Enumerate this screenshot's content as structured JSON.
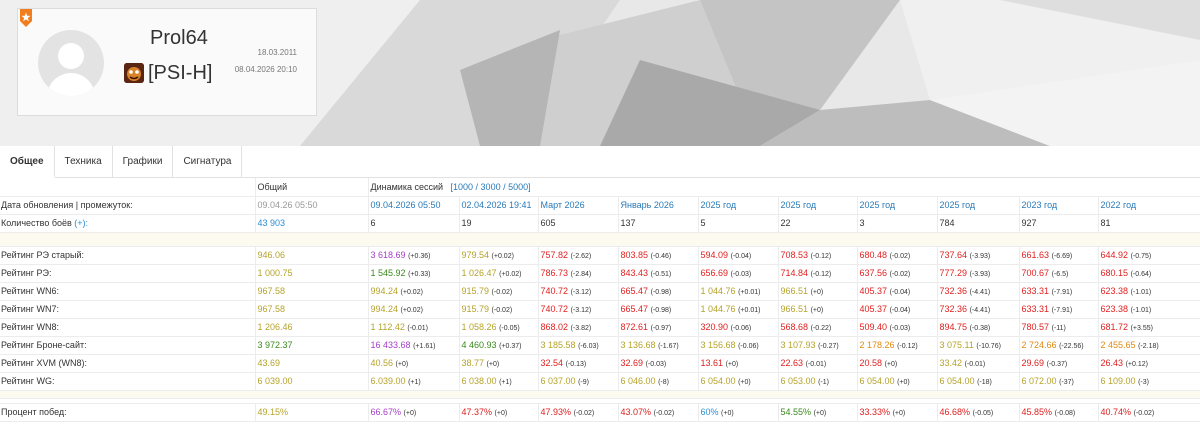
{
  "profile": {
    "nickname": "Prol64",
    "clan_tag": "[PSI-H]",
    "registered": "18.03.2011",
    "last_battle": "08.04.2026 20:10",
    "badge_icon": "star-badge-icon",
    "clan_icon": "clan-emblem-icon",
    "avatar_icon": "user-avatar-icon"
  },
  "tabs": [
    {
      "label": "Общее",
      "active": true
    },
    {
      "label": "Техника",
      "active": false
    },
    {
      "label": "Графики",
      "active": false
    },
    {
      "label": "Сигнатура",
      "active": false
    }
  ],
  "table": {
    "general_header": "Общий",
    "dynamics_header": "Динамика сессий",
    "dynamics_intervals": "[1000 / 3000 / 5000]",
    "update_label": "Дата обновления | промежуток:",
    "general_update": "09.04.26 05:50",
    "columns": [
      "09.04.2026 05:50",
      "02.04.2026 19:41",
      "Март 2026",
      "Январь 2026",
      "2025 год",
      "2025 год",
      "2025 год",
      "2025 год",
      "2023 год",
      "2022 год"
    ],
    "battles_label": "Количество боёв",
    "battles_plus": "(+):",
    "battles_general": "43 903",
    "battles": [
      "6",
      "19",
      "605",
      "137",
      "5",
      "22",
      "3",
      "784",
      "927",
      "81"
    ],
    "rows": [
      {
        "label": "Рейтинг РЭ старый:",
        "general": "946.06",
        "gc": "c-yellow",
        "cells": [
          [
            "3 618.69",
            "(+0.36)",
            "c-purple"
          ],
          [
            "979.54",
            "(+0.02)",
            "c-yellow"
          ],
          [
            "757.82",
            "(-2.62)",
            "c-red"
          ],
          [
            "803.85",
            "(-0.46)",
            "c-red"
          ],
          [
            "594.09",
            "(-0.04)",
            "c-red"
          ],
          [
            "708.53",
            "(-0.12)",
            "c-red"
          ],
          [
            "680.48",
            "(-0.02)",
            "c-red"
          ],
          [
            "737.64",
            "(-3.93)",
            "c-red"
          ],
          [
            "661.63",
            "(-6.69)",
            "c-red"
          ],
          [
            "644.92",
            "(-0.75)",
            "c-red"
          ]
        ]
      },
      {
        "label": "Рейтинг РЭ:",
        "general": "1 000.75",
        "gc": "c-yellow",
        "cells": [
          [
            "1 545.92",
            "(+0.33)",
            "c-green"
          ],
          [
            "1 026.47",
            "(+0.02)",
            "c-yellow"
          ],
          [
            "786.73",
            "(-2.84)",
            "c-red"
          ],
          [
            "843.43",
            "(-0.51)",
            "c-red"
          ],
          [
            "656.69",
            "(-0.03)",
            "c-red"
          ],
          [
            "714.84",
            "(-0.12)",
            "c-red"
          ],
          [
            "637.56",
            "(-0.02)",
            "c-red"
          ],
          [
            "777.29",
            "(-3.93)",
            "c-red"
          ],
          [
            "700.67",
            "(-6.5)",
            "c-red"
          ],
          [
            "680.15",
            "(-0.64)",
            "c-red"
          ]
        ]
      },
      {
        "label": "Рейтинг WN6:",
        "general": "967.58",
        "gc": "c-yellow",
        "cells": [
          [
            "994.24",
            "(+0.02)",
            "c-yellow"
          ],
          [
            "915.79",
            "(-0.02)",
            "c-yellow"
          ],
          [
            "740.72",
            "(-3.12)",
            "c-red"
          ],
          [
            "665.47",
            "(-0.98)",
            "c-red"
          ],
          [
            "1 044.76",
            "(+0.01)",
            "c-yellow"
          ],
          [
            "966.51",
            "(+0)",
            "c-yellow"
          ],
          [
            "405.37",
            "(-0.04)",
            "c-red"
          ],
          [
            "732.36",
            "(-4.41)",
            "c-red"
          ],
          [
            "633.31",
            "(-7.91)",
            "c-red"
          ],
          [
            "623.38",
            "(-1.01)",
            "c-red"
          ]
        ]
      },
      {
        "label": "Рейтинг WN7:",
        "general": "967.58",
        "gc": "c-yellow",
        "cells": [
          [
            "994.24",
            "(+0.02)",
            "c-yellow"
          ],
          [
            "915.79",
            "(-0.02)",
            "c-yellow"
          ],
          [
            "740.72",
            "(-3.12)",
            "c-red"
          ],
          [
            "665.47",
            "(-0.98)",
            "c-red"
          ],
          [
            "1 044.76",
            "(+0.01)",
            "c-yellow"
          ],
          [
            "966.51",
            "(+0)",
            "c-yellow"
          ],
          [
            "405.37",
            "(-0.04)",
            "c-red"
          ],
          [
            "732.36",
            "(-4.41)",
            "c-red"
          ],
          [
            "633.31",
            "(-7.91)",
            "c-red"
          ],
          [
            "623.38",
            "(-1.01)",
            "c-red"
          ]
        ]
      },
      {
        "label": "Рейтинг WN8:",
        "general": "1 206.46",
        "gc": "c-yellow",
        "cells": [
          [
            "1 112.42",
            "(-0.01)",
            "c-yellow"
          ],
          [
            "1 058.26",
            "(-0.05)",
            "c-yellow"
          ],
          [
            "868.02",
            "(-3.82)",
            "c-red"
          ],
          [
            "872.61",
            "(-0.97)",
            "c-red"
          ],
          [
            "320.90",
            "(-0.06)",
            "c-red"
          ],
          [
            "568.68",
            "(-0.22)",
            "c-red"
          ],
          [
            "509.40",
            "(-0.03)",
            "c-red"
          ],
          [
            "894.75",
            "(-0.38)",
            "c-red"
          ],
          [
            "780.57",
            "(-11)",
            "c-red"
          ],
          [
            "681.72",
            "(+3.55)",
            "c-red"
          ]
        ]
      },
      {
        "label": "Рейтинг Броне-сайт:",
        "general": "3 972.37",
        "gc": "c-green",
        "cells": [
          [
            "16 433.68",
            "(+1.61)",
            "c-purple"
          ],
          [
            "4 460.93",
            "(+0.37)",
            "c-green"
          ],
          [
            "3 185.58",
            "(-6.03)",
            "c-yellow"
          ],
          [
            "3 136.68",
            "(-1.67)",
            "c-yellow"
          ],
          [
            "3 156.68",
            "(-0.06)",
            "c-yellow"
          ],
          [
            "3 107.93",
            "(-0.27)",
            "c-yellow"
          ],
          [
            "2 178.26",
            "(-0.12)",
            "c-orange"
          ],
          [
            "3 075.11",
            "(-10.76)",
            "c-yellow"
          ],
          [
            "2 724.66",
            "(-22.56)",
            "c-orange"
          ],
          [
            "2 455.65",
            "(-2.18)",
            "c-orange"
          ]
        ]
      },
      {
        "label": "Рейтинг XVM (WN8):",
        "general": "43.69",
        "gc": "c-yellow",
        "cells": [
          [
            "40.56",
            "(+0)",
            "c-yellow"
          ],
          [
            "38.77",
            "(+0)",
            "c-yellow"
          ],
          [
            "32.54",
            "(-0.13)",
            "c-red"
          ],
          [
            "32.69",
            "(-0.03)",
            "c-red"
          ],
          [
            "13.61",
            "(+0)",
            "c-red"
          ],
          [
            "22.63",
            "(-0.01)",
            "c-red"
          ],
          [
            "20.58",
            "(+0)",
            "c-red"
          ],
          [
            "33.42",
            "(-0.01)",
            "c-yellow"
          ],
          [
            "29.69",
            "(-0.37)",
            "c-red"
          ],
          [
            "26.43",
            "(+0.12)",
            "c-red"
          ]
        ]
      },
      {
        "label": "Рейтинг WG:",
        "general": "6 039.00",
        "gc": "c-yellow",
        "cells": [
          [
            "6.039.00",
            "(+1)",
            "c-yellow"
          ],
          [
            "6 038.00",
            "(+1)",
            "c-yellow"
          ],
          [
            "6 037.00",
            "(-9)",
            "c-yellow"
          ],
          [
            "6 046.00",
            "(-8)",
            "c-yellow"
          ],
          [
            "6 054.00",
            "(+0)",
            "c-yellow"
          ],
          [
            "6 053.00",
            "(-1)",
            "c-yellow"
          ],
          [
            "6 054.00",
            "(+0)",
            "c-yellow"
          ],
          [
            "6 054.00",
            "(-18)",
            "c-yellow"
          ],
          [
            "6 072.00",
            "(-37)",
            "c-yellow"
          ],
          [
            "6 109.00",
            "(-3)",
            "c-yellow"
          ]
        ]
      }
    ],
    "winrate": {
      "label": "Процент побед:",
      "general": "49.15%",
      "gc": "c-yellow",
      "cells": [
        [
          "66.67%",
          "(+0)",
          "c-purple"
        ],
        [
          "47.37%",
          "(+0)",
          "c-red"
        ],
        [
          "47.93%",
          "(-0.02)",
          "c-red"
        ],
        [
          "43.07%",
          "(-0.02)",
          "c-red"
        ],
        [
          "60%",
          "(+0)",
          "c-blue"
        ],
        [
          "54.55%",
          "(+0)",
          "c-green"
        ],
        [
          "33.33%",
          "(+0)",
          "c-red"
        ],
        [
          "46.68%",
          "(-0.05)",
          "c-red"
        ],
        [
          "45.85%",
          "(-0.08)",
          "c-red"
        ],
        [
          "40.74%",
          "(-0.02)",
          "c-red"
        ]
      ]
    }
  }
}
